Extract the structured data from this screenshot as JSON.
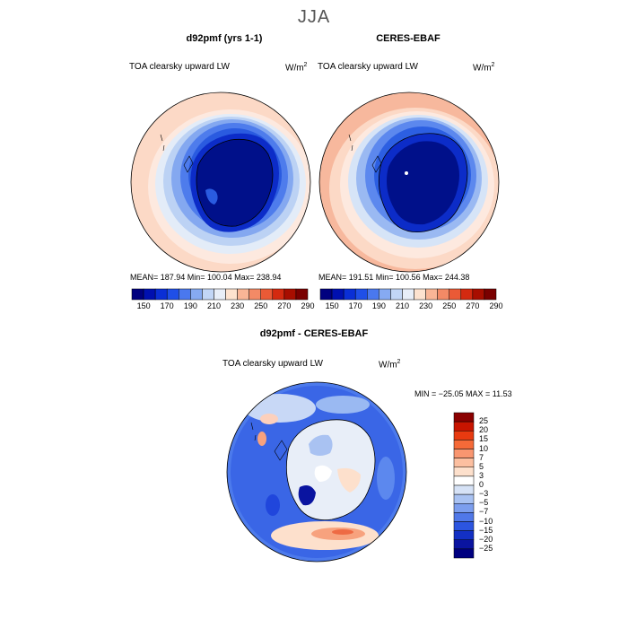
{
  "title": "JJA",
  "panels": [
    {
      "header": "d92pmf (yrs 1-1)",
      "variable": "TOA clearsky upward LW",
      "unit_base": "W/m",
      "unit_exp": "2",
      "stats": "MEAN= 187.94   Min= 100.04   Max= 238.94"
    },
    {
      "header": "CERES-EBAF",
      "variable": "TOA clearsky upward LW",
      "unit_base": "W/m",
      "unit_exp": "2",
      "stats": "MEAN= 191.51   Min= 100.56   Max= 244.38"
    }
  ],
  "abs_colorbar": {
    "labels": [
      "150",
      "170",
      "190",
      "210",
      "230",
      "250",
      "270",
      "290"
    ],
    "colors": [
      "#00007f",
      "#0010b0",
      "#0a2fd6",
      "#1f4fe8",
      "#4a78ee",
      "#86aaf2",
      "#c2d6f6",
      "#e8eef8",
      "#fde2cf",
      "#f9b596",
      "#f38a66",
      "#ea5a36",
      "#d42a10",
      "#a80e00",
      "#7a0000"
    ]
  },
  "diff": {
    "header": "d92pmf - CERES-EBAF",
    "variable": "TOA clearsky upward LW",
    "unit_base": "W/m",
    "unit_exp": "2",
    "stats": "MIN = −25.05   MAX =   11.53",
    "colorbar_labels": [
      "25",
      "20",
      "15",
      "10",
      "7",
      "5",
      "3",
      "0",
      "−3",
      "−5",
      "−7",
      "−10",
      "−15",
      "−20",
      "−25"
    ],
    "colorbar_colors": [
      "#8b0000",
      "#c81400",
      "#e83a10",
      "#f56a38",
      "#f99670",
      "#fcbfa0",
      "#fde0cc",
      "#ffffff",
      "#d6e2f6",
      "#a9c2f2",
      "#7c9eee",
      "#5078e8",
      "#2c55e0",
      "#1330c4",
      "#0a14a0",
      "#000080"
    ]
  },
  "colors": {
    "ocean_far": "#fcd9c6",
    "antarctic_core": "#00108a",
    "coast": "#000000"
  }
}
